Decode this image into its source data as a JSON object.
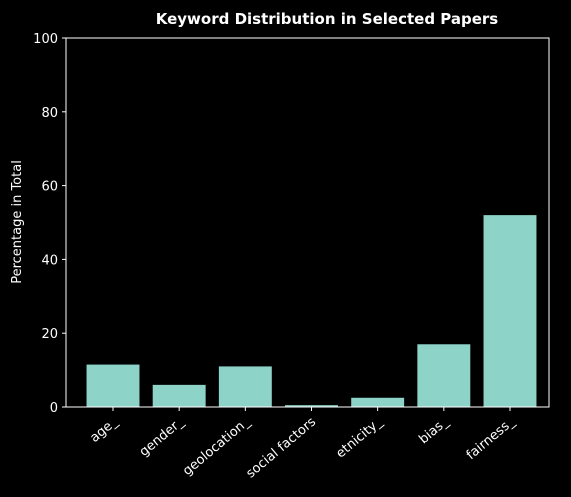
{
  "chart_data": {
    "type": "bar",
    "title": "Keyword Distribution in Selected Papers",
    "xlabel": "",
    "ylabel": "Percentage in Total",
    "categories": [
      "age_",
      "gender_",
      "geolocation_",
      "social factors",
      "etnicity_",
      "bias_",
      "fairness_"
    ],
    "values": [
      11.5,
      6.0,
      11.0,
      0.5,
      2.5,
      17.0,
      52.0
    ],
    "ylim": [
      0,
      100
    ],
    "yticks": [
      "0",
      "20",
      "40",
      "60",
      "80",
      "100"
    ],
    "grid": false,
    "bar_color": "#8dd3c7",
    "background_color": "#000000",
    "axis_color": "#ffffff"
  }
}
